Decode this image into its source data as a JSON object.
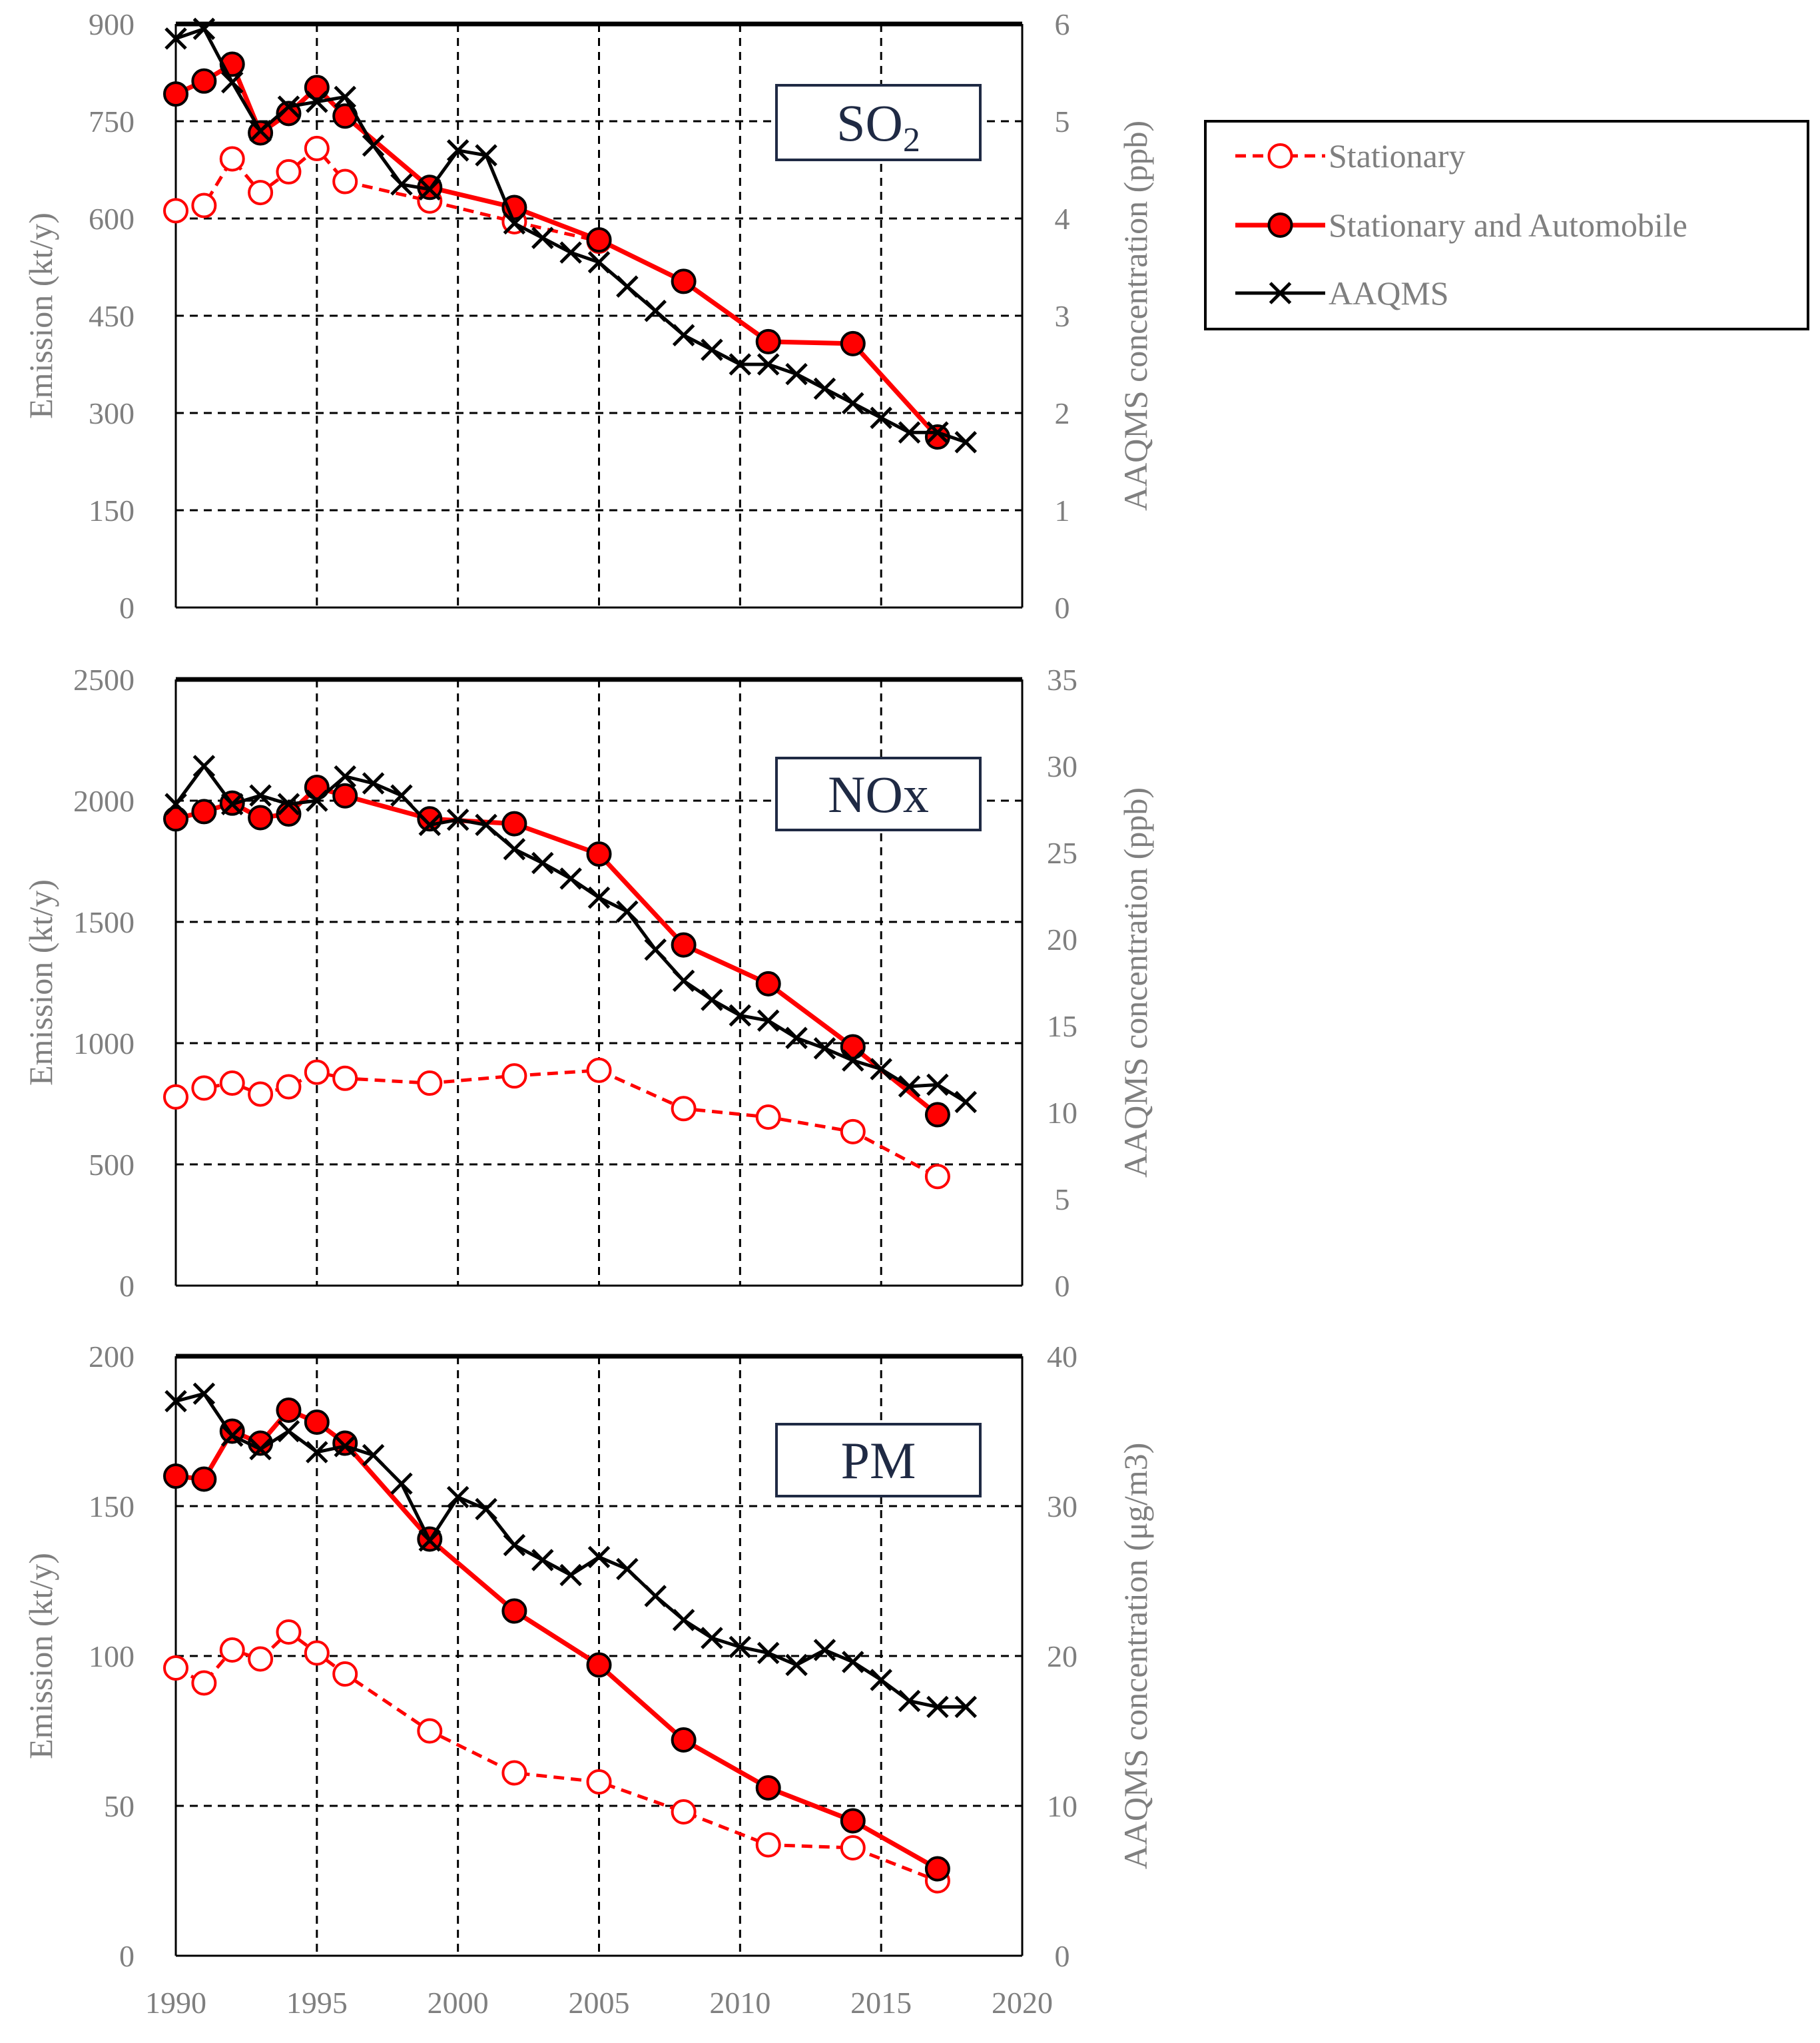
{
  "colors": {
    "stationary": "#ff0000",
    "combined": "#ff0000",
    "aaqms": "#000000",
    "grid": "#000000",
    "text": "#7f7f7f",
    "label_box": "#1f2a44"
  },
  "legend": {
    "stationary": "Stationary",
    "combined": "Stationary and Automobile",
    "aaqms": "AAQMS"
  },
  "chart_data": [
    {
      "type": "line",
      "panel": "SO2",
      "label_main": "SO",
      "label_sub": "2",
      "x_ticks": [
        "1990",
        "1995",
        "2000",
        "2005",
        "2010",
        "2015",
        "2020"
      ],
      "xlim": [
        1990,
        2020
      ],
      "ylabel_left": "Emission (kt/y)",
      "ylim_left": [
        0,
        900
      ],
      "yticks_left": [
        "0",
        "150",
        "300",
        "450",
        "600",
        "750",
        "900"
      ],
      "ylabel_right": "AAQMS concentration (ppb)",
      "ylim_right": [
        0,
        6
      ],
      "yticks_right": [
        "0",
        "1",
        "2",
        "3",
        "4",
        "5",
        "6"
      ],
      "series": [
        {
          "name": "Stationary",
          "axis": "left",
          "x": [
            1990,
            1991,
            1992,
            1993,
            1994,
            1995,
            1996,
            1999,
            2002,
            2005
          ],
          "values": [
            612,
            620,
            692,
            640,
            672,
            708,
            657,
            627,
            595,
            565
          ]
        },
        {
          "name": "Stationary and Automobile",
          "axis": "left",
          "x": [
            1990,
            1991,
            1992,
            1993,
            1994,
            1995,
            1996,
            1999,
            2002,
            2005,
            2008,
            2011,
            2014,
            2017
          ],
          "values": [
            792,
            812,
            838,
            732,
            762,
            802,
            758,
            648,
            617,
            567,
            503,
            410,
            407,
            263
          ]
        },
        {
          "name": "AAQMS",
          "axis": "right",
          "x": [
            1990,
            1991,
            1992,
            1993,
            1994,
            1995,
            1996,
            1997,
            1998,
            1999,
            2000,
            2001,
            2002,
            2003,
            2004,
            2005,
            2006,
            2007,
            2008,
            2009,
            2010,
            2011,
            2012,
            2013,
            2014,
            2015,
            2016,
            2017,
            2018
          ],
          "values": [
            5.85,
            5.95,
            5.4,
            4.9,
            5.15,
            5.2,
            5.25,
            4.75,
            4.35,
            4.3,
            4.7,
            4.65,
            3.95,
            3.8,
            3.65,
            3.55,
            3.3,
            3.05,
            2.8,
            2.65,
            2.5,
            2.5,
            2.4,
            2.25,
            2.1,
            1.95,
            1.8,
            1.8,
            1.7
          ]
        }
      ]
    },
    {
      "type": "line",
      "panel": "NOx",
      "label_main": "NOx",
      "label_sub": "",
      "x_ticks": [
        "1990",
        "1995",
        "2000",
        "2005",
        "2010",
        "2015",
        "2020"
      ],
      "xlim": [
        1990,
        2020
      ],
      "ylabel_left": "Emission (kt/y)",
      "ylim_left": [
        0,
        2500
      ],
      "yticks_left": [
        "0",
        "500",
        "1000",
        "1500",
        "2000",
        "2500"
      ],
      "ylabel_right": "AAQMS concentration (ppb)",
      "ylim_right": [
        0,
        35
      ],
      "yticks_right": [
        "0",
        "5",
        "10",
        "15",
        "20",
        "25",
        "30",
        "35"
      ],
      "series": [
        {
          "name": "Stationary",
          "axis": "left",
          "x": [
            1990,
            1991,
            1992,
            1993,
            1994,
            1995,
            1996,
            1999,
            2002,
            2005,
            2008,
            2011,
            2014,
            2017
          ],
          "values": [
            778,
            815,
            835,
            790,
            820,
            880,
            855,
            835,
            865,
            888,
            730,
            695,
            635,
            450
          ]
        },
        {
          "name": "Stationary and Automobile",
          "axis": "left",
          "x": [
            1990,
            1991,
            1992,
            1993,
            1994,
            1995,
            1996,
            1999,
            2002,
            2005,
            2008,
            2011,
            2014,
            2017
          ],
          "values": [
            1925,
            1955,
            1990,
            1930,
            1945,
            2055,
            2020,
            1925,
            1905,
            1780,
            1405,
            1245,
            985,
            705
          ]
        },
        {
          "name": "AAQMS",
          "axis": "right",
          "x": [
            1990,
            1991,
            1992,
            1993,
            1994,
            1995,
            1996,
            1997,
            1998,
            1999,
            2000,
            2001,
            2002,
            2003,
            2004,
            2005,
            2006,
            2007,
            2008,
            2009,
            2010,
            2011,
            2012,
            2013,
            2014,
            2015,
            2016,
            2017,
            2018
          ],
          "values": [
            27.8,
            30,
            27.8,
            28.3,
            27.8,
            28,
            29.4,
            29,
            28.3,
            26.6,
            26.9,
            26.6,
            25.2,
            24.4,
            23.5,
            22.4,
            21.6,
            19.4,
            17.6,
            16.5,
            15.6,
            15.3,
            14.3,
            13.7,
            13,
            12.5,
            11.5,
            11.6,
            10.6
          ]
        }
      ]
    },
    {
      "type": "line",
      "panel": "PM",
      "label_main": "PM",
      "label_sub": "",
      "x_ticks": [
        "1990",
        "1995",
        "2000",
        "2005",
        "2010",
        "2015",
        "2020"
      ],
      "xlim": [
        1990,
        2020
      ],
      "ylabel_left": "Emission (kt/y)",
      "ylim_left": [
        0,
        200
      ],
      "yticks_left": [
        "0",
        "50",
        "100",
        "150",
        "200"
      ],
      "ylabel_right": "AAQMS concentration (μg/m3)",
      "ylim_right": [
        0,
        40
      ],
      "yticks_right": [
        "0",
        "10",
        "20",
        "30",
        "40"
      ],
      "series": [
        {
          "name": "Stationary",
          "axis": "left",
          "x": [
            1990,
            1991,
            1992,
            1993,
            1994,
            1995,
            1996,
            1999,
            2002,
            2005,
            2008,
            2011,
            2014,
            2017
          ],
          "values": [
            96,
            91,
            102,
            99,
            108,
            101,
            94,
            75,
            61,
            58,
            48,
            37,
            36,
            25
          ]
        },
        {
          "name": "Stationary and Automobile",
          "axis": "left",
          "x": [
            1990,
            1991,
            1992,
            1993,
            1994,
            1995,
            1996,
            1999,
            2002,
            2005,
            2008,
            2011,
            2014,
            2017
          ],
          "values": [
            160,
            159,
            175,
            171,
            182,
            178,
            171,
            139,
            115,
            97,
            72,
            56,
            45,
            29
          ]
        },
        {
          "name": "AAQMS",
          "axis": "right",
          "x": [
            1990,
            1991,
            1992,
            1993,
            1994,
            1995,
            1996,
            1997,
            1998,
            1999,
            2000,
            2001,
            2002,
            2003,
            2004,
            2005,
            2006,
            2007,
            2008,
            2009,
            2010,
            2011,
            2012,
            2013,
            2014,
            2015,
            2016,
            2017,
            2018
          ],
          "values": [
            37,
            37.5,
            34.7,
            33.8,
            35,
            33.6,
            34,
            33.4,
            31.5,
            27.7,
            30.6,
            29.8,
            27.4,
            26.4,
            25.4,
            26.6,
            25.8,
            24,
            22.4,
            21.2,
            20.6,
            20.2,
            19.4,
            20.4,
            19.6,
            18.4,
            17,
            16.6,
            16.6
          ]
        }
      ]
    }
  ]
}
